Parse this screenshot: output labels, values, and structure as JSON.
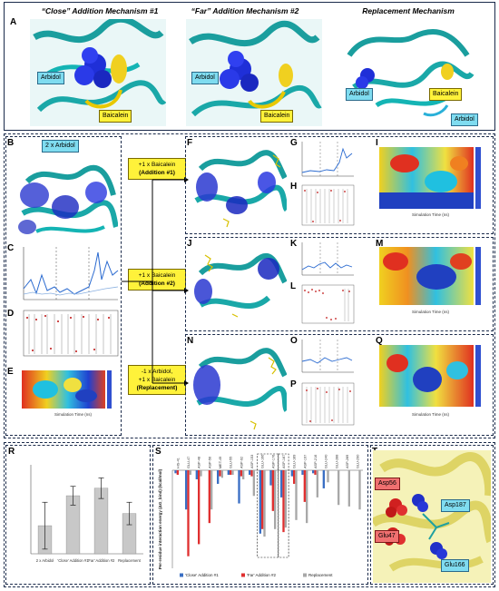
{
  "panels": {
    "a": "A",
    "b": "B",
    "c": "C",
    "d": "D",
    "e": "E",
    "f": "F",
    "g": "G",
    "h": "H",
    "i": "I",
    "j": "J",
    "k": "K",
    "l": "L",
    "m": "M",
    "n": "N",
    "o": "O",
    "p": "P",
    "q": "Q",
    "r": "R",
    "s": "S",
    "t": "T"
  },
  "panel_a": {
    "title1": "“Close” Addition Mechanism #1",
    "title2": "“Far” Addition Mechanism #2",
    "title3": "Replacement Mechanism",
    "arbidol": "Arbidol",
    "baicalein": "Baicalein"
  },
  "panel_b": {
    "label": "2 x Arbidol"
  },
  "scenarios": {
    "s1_line1": "+1 x Baicalein",
    "s1_line2": "(Addition #1)",
    "s2_line1": "+1 x Baicalein",
    "s2_line2": "(Addition #2)",
    "s3_line1": "-1 x Arbidol,",
    "s3_line2": "+1 x Baicalein",
    "s3_line3": "(Replacement)"
  },
  "small_axes": {
    "sim_time": "Simulation Time (ns)"
  },
  "chart_data": [
    {
      "type": "bar",
      "panel": "R",
      "categories": [
        "2 x Arbidol",
        "'Close' Addition #1",
        "'Far' Addition #2",
        "Replacement"
      ],
      "values": [
        -40.5,
        -37.3,
        -36.5,
        -39.2
      ],
      "ylim": [
        -43.5,
        -34
      ],
      "bar_color": "#c8c8c8"
    },
    {
      "type": "bar",
      "panel": "S",
      "ylabel": "Per-residue interaction energy (ΔG_bind) (kcal/mol)",
      "categories": [
        "HIS-41",
        "GLU-47",
        "ASP-48",
        "ASP-56",
        "MET-49",
        "GLU-55",
        "ASP-92",
        "ASP-153",
        "GLU-166",
        "ASP-176",
        "ASP-187",
        "GLU-189",
        "ASP-197",
        "ASP-216",
        "GLU-240",
        "GLU-288",
        "ASP-289",
        "GLU-290"
      ],
      "series": [
        {
          "name": "'Close' Addition #1",
          "color": "#3a6fc4",
          "values": [
            -0.2,
            -2.6,
            -0.6,
            0,
            -0.9,
            -0.3,
            -2.2,
            -0.3,
            -4.2,
            -1.0,
            -1.8,
            -0.4,
            -0.3,
            -0.2,
            -1.2,
            0,
            0,
            0
          ]
        },
        {
          "name": "'Far' Addition #2",
          "color": "#e03030",
          "values": [
            -0.3,
            -5.7,
            -4.9,
            -3.5,
            -0.4,
            -0.3,
            -0.4,
            -0.4,
            -3.9,
            -2.7,
            -4.1,
            -0.9,
            -2.1,
            -0.3,
            0,
            0,
            0,
            0
          ]
        },
        {
          "name": "Replacement",
          "color": "#a8a8a8",
          "values": [
            0,
            -0.3,
            -0.4,
            -2.6,
            -0.5,
            -0.3,
            -0.6,
            -1.7,
            -4.4,
            -3.9,
            -3.8,
            -3.3,
            -3.5,
            -1.8,
            -0.8,
            -2.3,
            -2.4,
            -2.6
          ]
        }
      ],
      "ylim": [
        -6.5,
        0
      ]
    }
  ],
  "panel_t": {
    "asp56": "Asp56",
    "asp187": "Asp187",
    "glu47": "Glu47",
    "glu166": "Glu166"
  }
}
